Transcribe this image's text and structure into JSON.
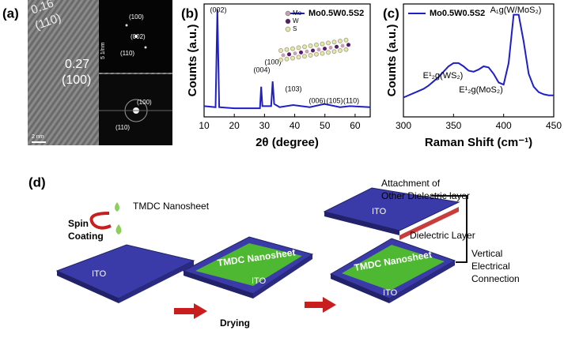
{
  "panel_labels": [
    "(a)",
    "(b)",
    "(c)",
    "(d)"
  ],
  "tem": {
    "lattice": [
      "0.16",
      "(110)",
      "0.27",
      "(100)"
    ],
    "saed": [
      "(100)",
      "(002)",
      "(110)"
    ],
    "saed_scale": "5 1/nm",
    "fft": [
      "(100)",
      "(110)"
    ],
    "scale": "2 nm"
  },
  "chart_data": [
    {
      "type": "line",
      "xlabel": "2θ (degree)",
      "ylabel": "Counts (a.u.)",
      "x": [
        10,
        13.8,
        14.4,
        15,
        20,
        28.5,
        28.9,
        29.3,
        32.2,
        32.7,
        33.2,
        35,
        39.5,
        45,
        49.8,
        55,
        58.3,
        65
      ],
      "series": [
        {
          "name": "Mo0.5W0.5S2",
          "color": "#1f1fc8",
          "values": [
            10,
            9,
            100,
            9,
            8,
            8,
            28,
            10,
            10,
            33,
            12,
            9,
            11,
            9,
            12,
            9,
            10,
            9
          ]
        }
      ],
      "xlim": [
        10,
        65
      ],
      "xticks": [
        10,
        20,
        30,
        40,
        50,
        60
      ],
      "ylim": [
        0,
        105
      ],
      "legend": "upper right",
      "annotations": [
        "(002)",
        "(004)",
        "(100)",
        "(103)",
        "(006)",
        "(105)",
        "(110)"
      ],
      "inset_legend": [
        {
          "name": "Mo",
          "color": "#c8a0b4"
        },
        {
          "name": "W",
          "color": "#5a1a6a"
        },
        {
          "name": "S",
          "color": "#e8e8a0"
        }
      ]
    },
    {
      "type": "line",
      "xlabel": "Raman Shift (cm⁻¹)",
      "ylabel": "Counts (a.u.)",
      "x": [
        300,
        305,
        310,
        315,
        320,
        325,
        330,
        335,
        340,
        345,
        350,
        355,
        360,
        365,
        370,
        375,
        380,
        385,
        390,
        395,
        400,
        405,
        410,
        415,
        420,
        425,
        430,
        435,
        440,
        445,
        450
      ],
      "series": [
        {
          "name": "Mo0.5W0.5S2",
          "color": "#1f1fc8",
          "values": [
            18,
            20,
            22,
            24,
            26,
            29,
            33,
            37,
            42,
            47,
            50,
            50,
            47,
            43,
            42,
            44,
            47,
            46,
            40,
            32,
            30,
            50,
            95,
            95,
            70,
            40,
            28,
            23,
            21,
            20,
            20
          ]
        }
      ],
      "xlim": [
        300,
        450
      ],
      "xticks": [
        300,
        350,
        400,
        450
      ],
      "ylim": [
        0,
        105
      ],
      "legend": "upper left",
      "annotations": [
        "E¹₂g(WS₂)",
        "E¹₂g(MoS₂)",
        "A₁g(W/MoS₂)"
      ]
    }
  ],
  "diagram": {
    "source": "TMDC Nanosheet",
    "spin": [
      "Spin",
      "Coating"
    ],
    "ito_1": "ITO",
    "sheet_2": "TMDC Nanosheet",
    "ito_2": "ITO",
    "drying": "Drying",
    "attach": [
      "Attachment of",
      "Other Dielectric layer"
    ],
    "ito_top": "ITO",
    "dielectric": "Dielectric Layer",
    "sheet_3": "TMDC Nanosheet",
    "ito_3": "ITO",
    "connection": [
      "Vertical",
      "Electrical",
      "Connection"
    ]
  }
}
